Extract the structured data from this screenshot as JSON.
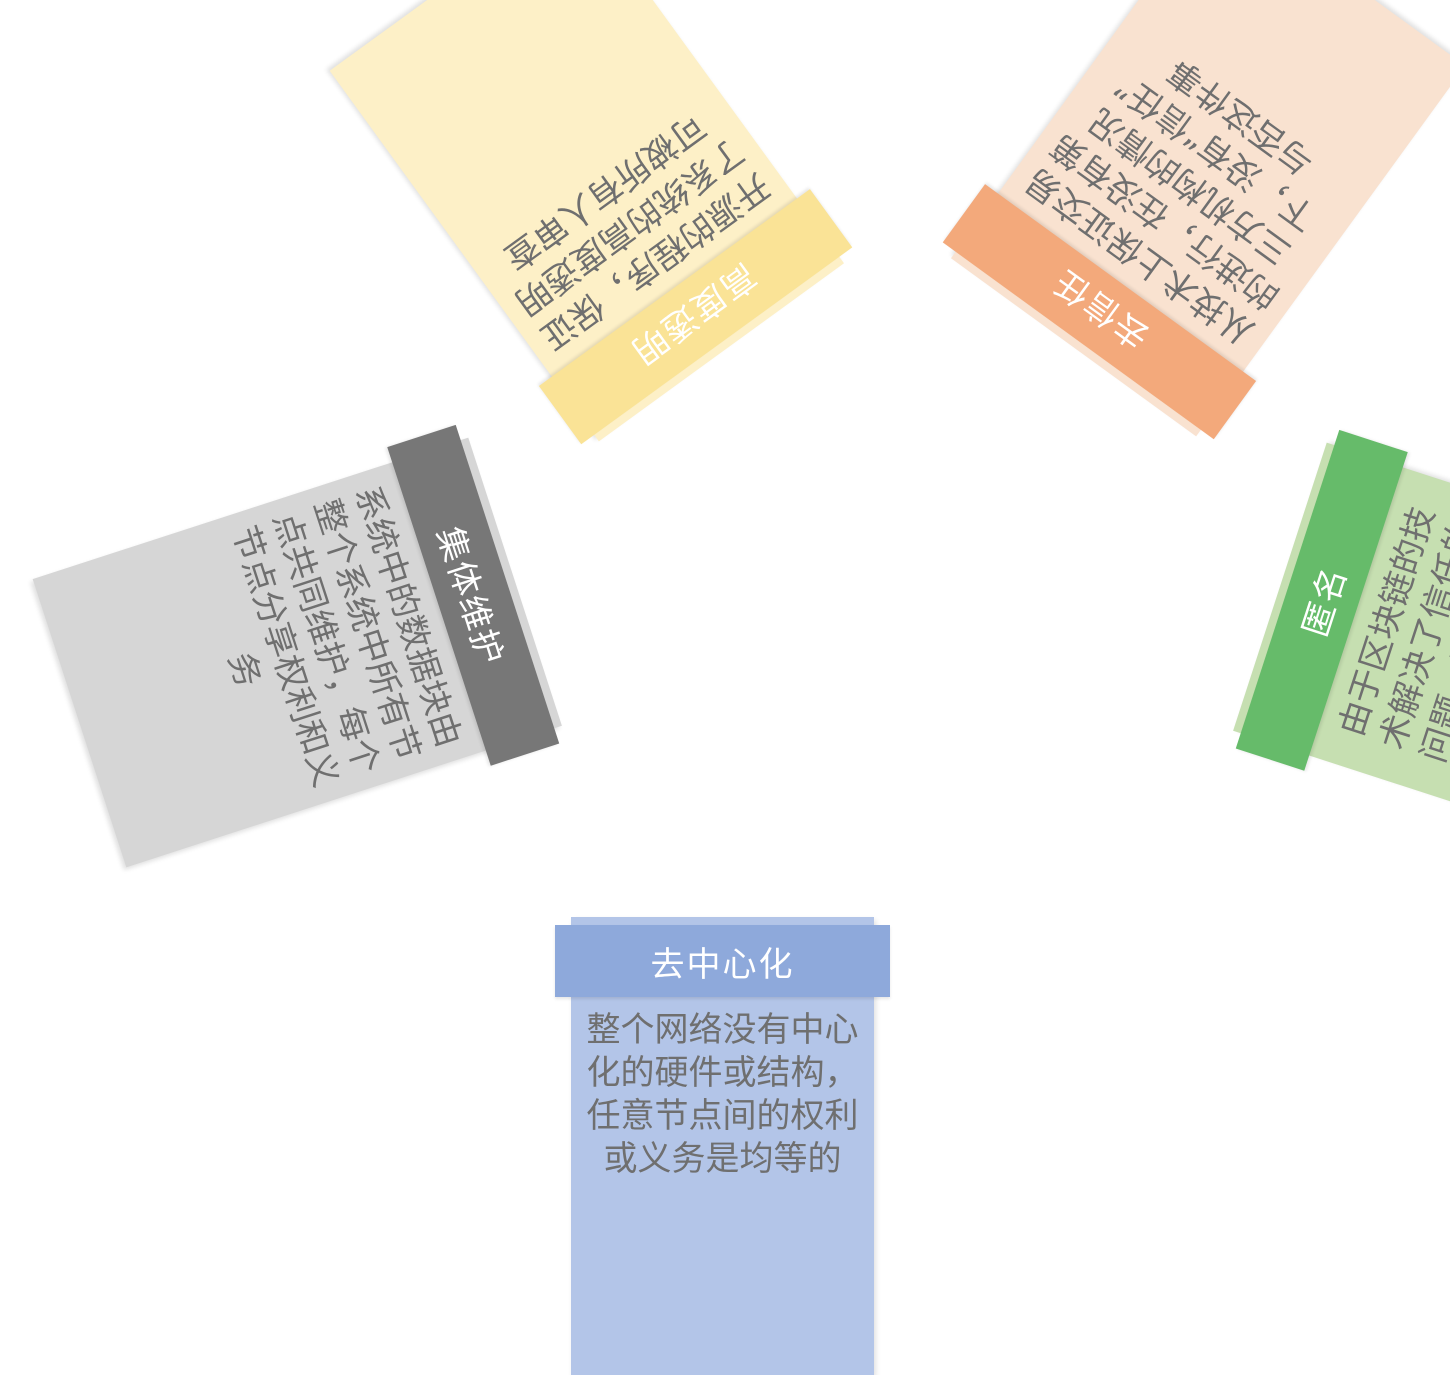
{
  "diagram": {
    "cards": {
      "decentral": {
        "title": "去中心化",
        "text": "整个网络没有中心\n化的硬件或结构，\n任意节点间的权利\n或义务是均等的"
      },
      "anonymous": {
        "title": "匿名",
        "text": "由于区块链的技\n术解决了信任的\n问题，因此交易\n双方没有必要了\n解对方，交易在\n匿名下进行"
      },
      "trustless": {
        "title": "去信任",
        "text": "从技术上保证交易\n的进行，在没有第\n三方机构的情况\n下，没有“信任”\n与否这件事"
      },
      "transparent": {
        "title": "高度透明",
        "text": "开源的程序，保证\n了系统的高度透明\n可被所有人审查"
      },
      "collective": {
        "title": "集体维护",
        "text": "系统中的数据块由\n整个系统中所有节\n点共同维护，每个\n节点分享权利和义\n务"
      }
    },
    "colors": {
      "decentral_body": "#b3c5e8",
      "decentral_header": "#8ea9db",
      "anonymous_body": "#c6dfb1",
      "anonymous_header": "#66bb6a",
      "trustless_body": "#f9e2d0",
      "trustless_header": "#f3a97b",
      "transparent_body": "#fdf0c7",
      "transparent_header": "#fae396",
      "collective_body": "#d6d6d6",
      "collective_header": "#777777",
      "text": "#6f6f6f"
    }
  }
}
